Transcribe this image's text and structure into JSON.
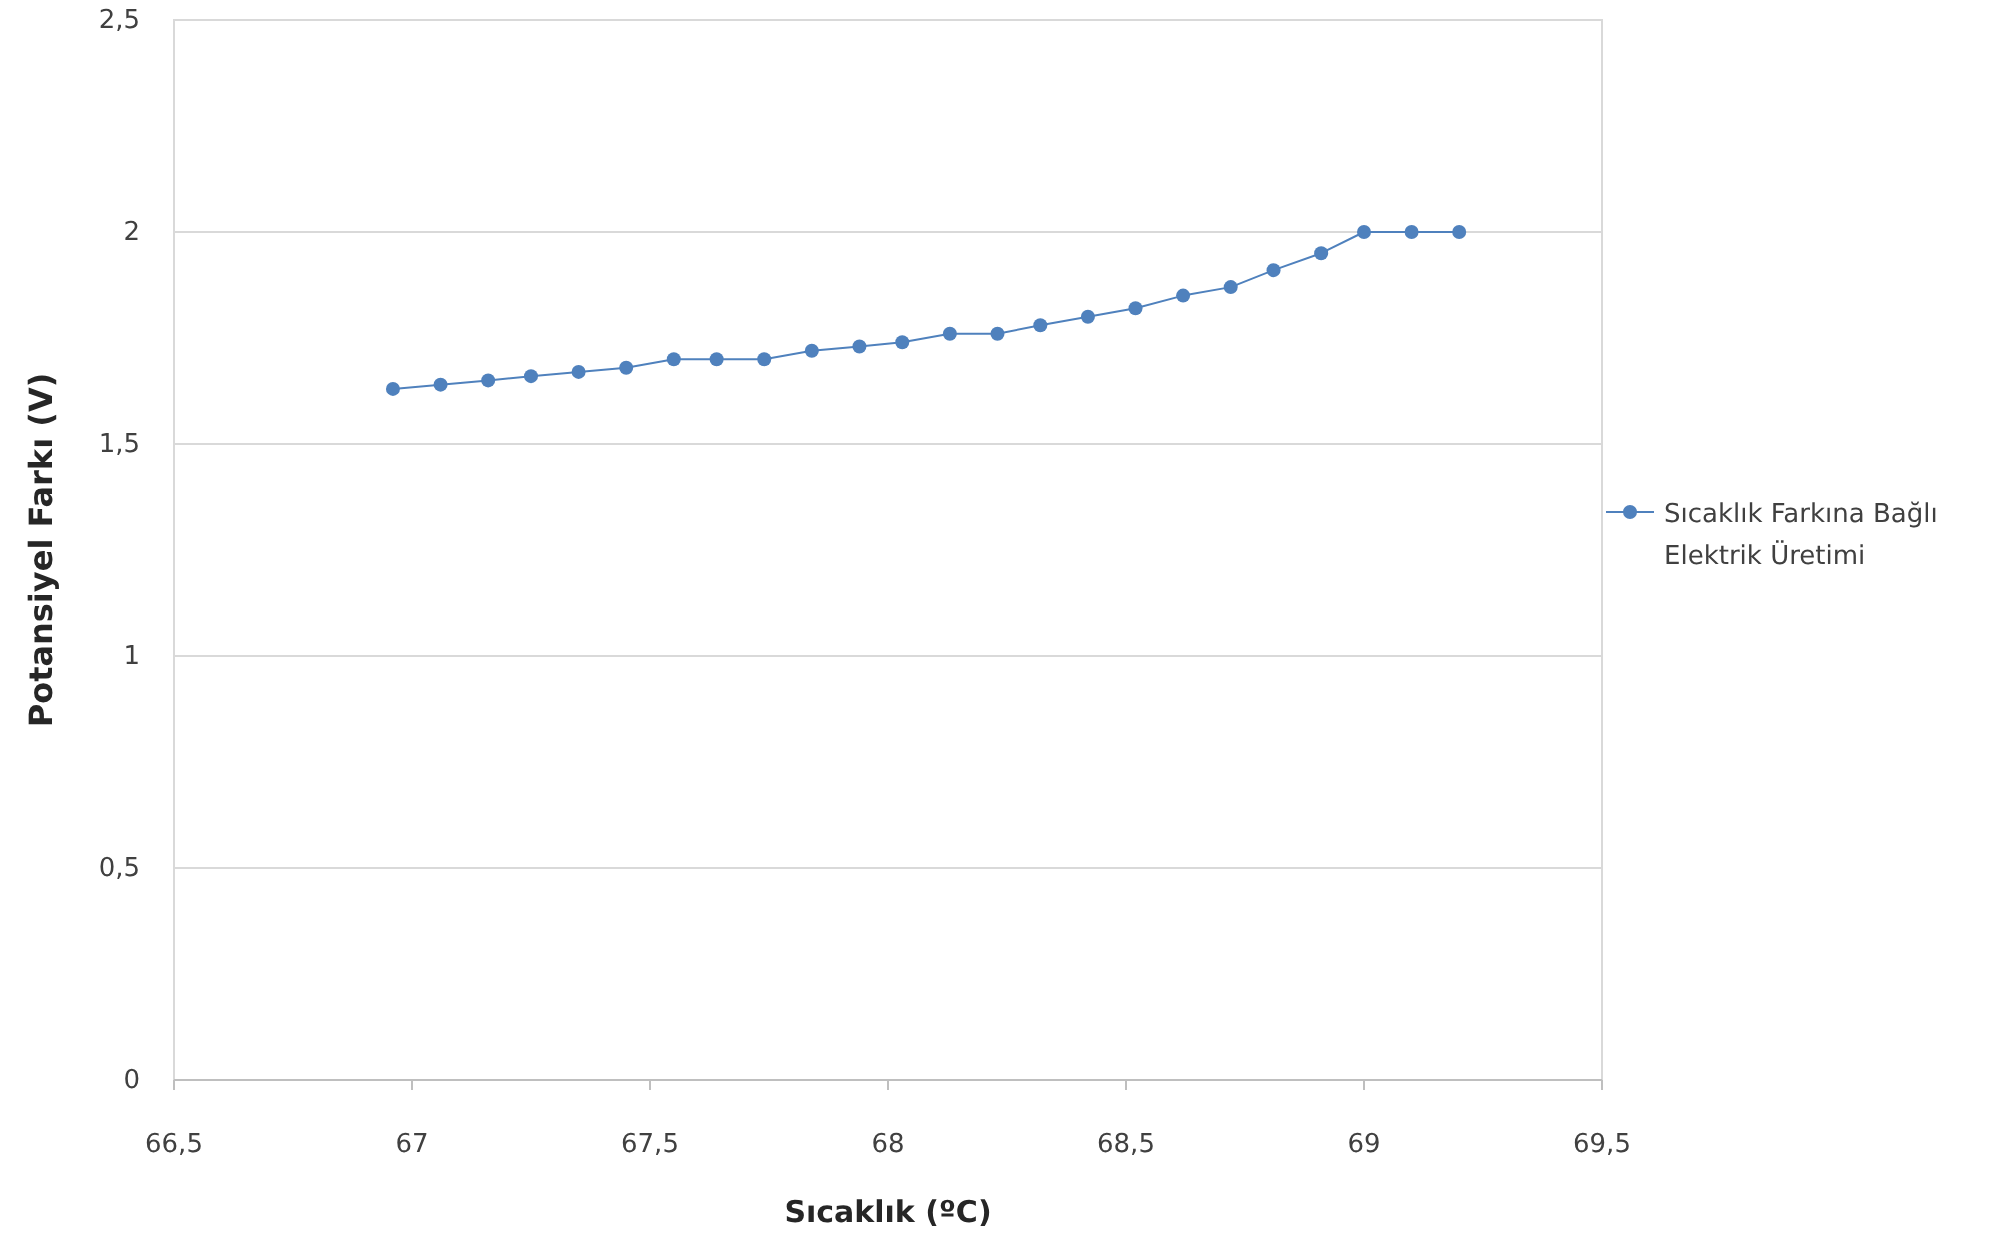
{
  "chart_data": {
    "type": "line",
    "xlabel": "Sıcaklık (ºC)",
    "ylabel": "Potansiyel Farkı (V)",
    "xlim": [
      66.5,
      69.5
    ],
    "xticks": [
      {
        "value": 66.5,
        "label": "66,5"
      },
      67,
      {
        "value": 67.5,
        "label": "67,5"
      },
      68,
      {
        "value": 68.5,
        "label": "68,5"
      },
      69,
      {
        "value": 69.5,
        "label": "69,5"
      }
    ],
    "ylim": [
      0,
      2.5
    ],
    "yticks": [
      0,
      {
        "value": 0.5,
        "label": "0,5"
      },
      1,
      {
        "value": 1.5,
        "label": "1,5"
      },
      2,
      {
        "value": 2.5,
        "label": "2,5"
      }
    ],
    "grid": "y",
    "legend": "right",
    "marker": "circle",
    "line_style": "solid",
    "series": [
      {
        "name": "Sıcaklık Farkına Bağlı Elektrik Üretimi",
        "color": "#4f81bd",
        "x": [
          66.96,
          67.06,
          67.16,
          67.25,
          67.35,
          67.45,
          67.55,
          67.64,
          67.74,
          67.84,
          67.94,
          68.03,
          68.13,
          68.23,
          68.32,
          68.42,
          68.52,
          68.62,
          68.72,
          68.81,
          68.91,
          69.0,
          69.1,
          69.2
        ],
        "values": [
          1.63,
          1.64,
          1.65,
          1.66,
          1.67,
          1.68,
          1.7,
          1.7,
          1.7,
          1.72,
          1.73,
          1.74,
          1.76,
          1.76,
          1.78,
          1.8,
          1.82,
          1.85,
          1.87,
          1.91,
          1.95,
          2.0,
          2.0,
          2.0
        ]
      }
    ]
  }
}
